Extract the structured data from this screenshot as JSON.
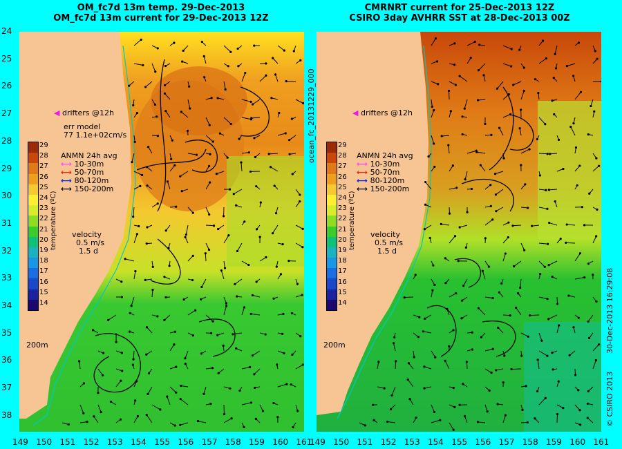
{
  "panels": {
    "left": {
      "title_line1": "OM_fc7d 13m temp. 29-Dec-2013",
      "title_line2": "OM_fc7d 13m current for 29-Dec-2013 12Z",
      "drifters_label": "drifters @12h",
      "err_model_line1": "err model",
      "err_model_line2": "77 1.1e+02cm/s"
    },
    "right": {
      "title_line1": "CMRNRT current for 25-Dec-2013 12Z",
      "title_line2": "CSIRO 3day AVHRR SST at 28-Dec-2013 00Z",
      "drifters_label": "drifters @12h"
    }
  },
  "legend": {
    "title": "ANMN 24h avg",
    "items": [
      {
        "label": "10-30m",
        "color": "#ff44ff"
      },
      {
        "label": "50-70m",
        "color": "#ff2200"
      },
      {
        "label": "80-120m",
        "color": "#0022ff"
      },
      {
        "label": "150-200m",
        "color": "#000000"
      }
    ]
  },
  "velocity": {
    "label": "velocity",
    "scale": "0.5 m/s",
    "duration": "1.5 d"
  },
  "isobath_label": "200m",
  "colorbar": {
    "label": "temperature (ºC)",
    "ticks": [
      29,
      28,
      27,
      26,
      25,
      24,
      23,
      22,
      21,
      20,
      19,
      18,
      17,
      16,
      15,
      14
    ],
    "colors": [
      "#9b2a06",
      "#c8480a",
      "#e07a16",
      "#ee9f1e",
      "#f6c832",
      "#ffef30",
      "#d8ec2a",
      "#8edc22",
      "#3ccc28",
      "#10c078",
      "#1ab2c0",
      "#1a96e6",
      "#1a6ee0",
      "#1a48c8",
      "#1a22a0",
      "#1a0870"
    ]
  },
  "axes": {
    "lat_ticks": [
      "24",
      "25",
      "26",
      "27",
      "28",
      "29",
      "30",
      "31",
      "32",
      "33",
      "34",
      "35",
      "36",
      "37",
      "38"
    ],
    "lon_ticks": [
      "149",
      "150",
      "151",
      "152",
      "153",
      "154",
      "155",
      "156",
      "157",
      "158",
      "159",
      "160",
      "161"
    ]
  },
  "side_labels": {
    "run_id": "ocean_fc_20131229_000",
    "timestamp": "30-Dec-2013 16:29:08",
    "copyright": "© CSIRO 2013"
  },
  "colors": {
    "background": "#00ffff",
    "land": "#f7c594",
    "shelf": "#00a0d0"
  }
}
